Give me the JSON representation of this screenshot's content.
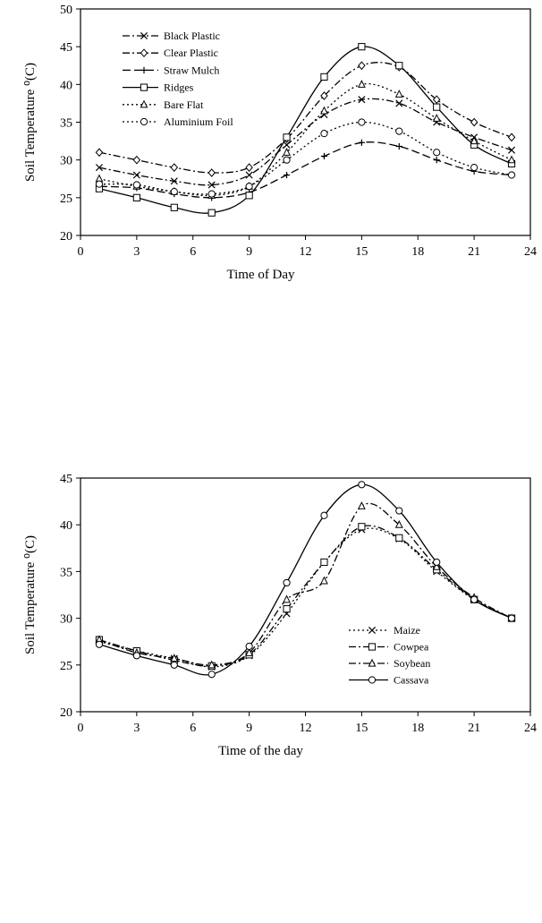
{
  "chart_data": [
    {
      "type": "line",
      "xlabel": "Time of Day",
      "ylabel": "Soil Temperature ⁰(C)",
      "xlim": [
        0,
        24
      ],
      "ylim": [
        20,
        50
      ],
      "xticks": [
        0,
        3,
        6,
        9,
        12,
        15,
        18,
        21,
        24
      ],
      "yticks": [
        20,
        25,
        30,
        35,
        40,
        45,
        50
      ],
      "grid": false,
      "legend_position": "top-left",
      "series": [
        {
          "name": "Black Plastic",
          "style": "dashdot",
          "marker": "x",
          "x": [
            1,
            3,
            5,
            7,
            9,
            11,
            13,
            15,
            17,
            19,
            21,
            23
          ],
          "y": [
            29,
            28,
            27.2,
            26.7,
            28,
            32,
            36,
            38,
            37.5,
            35,
            33,
            31.3
          ]
        },
        {
          "name": "Clear Plastic",
          "style": "dashdot",
          "marker": "diamond",
          "x": [
            1,
            3,
            5,
            7,
            9,
            11,
            13,
            15,
            17,
            19,
            21,
            23
          ],
          "y": [
            31,
            30,
            29,
            28.3,
            29,
            32.8,
            38.5,
            42.5,
            42.3,
            38,
            35,
            33
          ]
        },
        {
          "name": "Straw Mulch",
          "style": "dash",
          "marker": "plus",
          "x": [
            1,
            3,
            5,
            7,
            9,
            11,
            13,
            15,
            17,
            19,
            21,
            23
          ],
          "y": [
            26.5,
            26.3,
            25.5,
            25,
            25.7,
            28,
            30.5,
            32.3,
            31.8,
            30,
            28.5,
            28
          ]
        },
        {
          "name": "Ridges",
          "style": "solid",
          "marker": "square",
          "x": [
            1,
            3,
            5,
            7,
            9,
            11,
            13,
            15,
            17,
            19,
            21,
            23
          ],
          "y": [
            26.2,
            25,
            23.7,
            23,
            25.3,
            33,
            41,
            45,
            42.5,
            37,
            32,
            29.5
          ]
        },
        {
          "name": "Bare Flat",
          "style": "dot",
          "marker": "triangle",
          "x": [
            1,
            3,
            5,
            7,
            9,
            11,
            13,
            15,
            17,
            19,
            21,
            23
          ],
          "y": [
            27.5,
            26.5,
            25.8,
            25.3,
            26.5,
            31,
            36.5,
            40,
            38.7,
            35.5,
            32.5,
            30
          ]
        },
        {
          "name": "Aluminium Foil",
          "style": "dot",
          "marker": "circle",
          "x": [
            1,
            3,
            5,
            7,
            9,
            11,
            13,
            15,
            17,
            19,
            21,
            23
          ],
          "y": [
            26.8,
            26.7,
            25.8,
            25.5,
            26.5,
            30,
            33.5,
            35,
            33.8,
            31,
            29,
            28
          ]
        }
      ]
    },
    {
      "type": "line",
      "xlabel": "Time of the day",
      "ylabel": "Soil Temperature ⁰(C)",
      "xlim": [
        0,
        24
      ],
      "ylim": [
        20,
        45
      ],
      "xticks": [
        0,
        3,
        6,
        9,
        12,
        15,
        18,
        21,
        24
      ],
      "yticks": [
        20,
        25,
        30,
        35,
        40,
        45
      ],
      "grid": false,
      "legend_position": "bottom-right",
      "series": [
        {
          "name": "Maize",
          "style": "dot",
          "marker": "x",
          "x": [
            1,
            3,
            5,
            7,
            9,
            11,
            13,
            15,
            17,
            19,
            21,
            23
          ],
          "y": [
            27.5,
            26.5,
            25.7,
            24.8,
            26,
            30.5,
            36,
            39.5,
            38.5,
            35,
            32,
            30
          ]
        },
        {
          "name": "Cowpea",
          "style": "dashdot",
          "marker": "square",
          "x": [
            1,
            3,
            5,
            7,
            9,
            11,
            13,
            15,
            17,
            19,
            21,
            23
          ],
          "y": [
            27.7,
            26.5,
            25.5,
            24.9,
            26.1,
            31,
            36,
            39.8,
            38.6,
            35.2,
            32,
            30
          ]
        },
        {
          "name": "Soybean",
          "style": "dashdot",
          "marker": "triangle",
          "x": [
            1,
            3,
            5,
            7,
            9,
            11,
            13,
            15,
            17,
            19,
            21,
            23
          ],
          "y": [
            27.7,
            26.3,
            25.7,
            25,
            26.3,
            32,
            34,
            42,
            40,
            35.5,
            32.2,
            30
          ]
        },
        {
          "name": "Cassava",
          "style": "solid",
          "marker": "circle",
          "x": [
            1,
            3,
            5,
            7,
            9,
            11,
            13,
            15,
            17,
            19,
            21,
            23
          ],
          "y": [
            27.2,
            26,
            25,
            24,
            27,
            33.8,
            41,
            44.3,
            41.5,
            36,
            32,
            30
          ]
        }
      ]
    }
  ]
}
